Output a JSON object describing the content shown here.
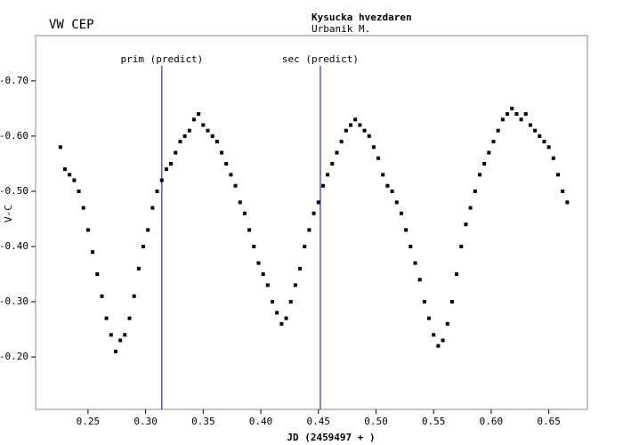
{
  "chart_data": {
    "type": "scatter",
    "title": "VW CEP",
    "header": "Kysucka hvezdaren",
    "observer": "Urbanik M.",
    "xlabel": "JD (2459497 + )",
    "ylabel": "V-C",
    "xlim": [
      0.2045,
      0.6835
    ],
    "ylim": [
      -0.105,
      -0.782
    ],
    "xticks": [
      0.25,
      {
        "value": 0.3,
        "label": "0.30"
      },
      0.35,
      {
        "value": 0.4,
        "label": "0.40"
      },
      0.45,
      {
        "value": 0.5,
        "label": "0.50"
      },
      0.55,
      {
        "value": 0.6,
        "label": "0.60"
      },
      0.65
    ],
    "yticks": [
      {
        "value": -0.7,
        "label": "-0.70"
      },
      {
        "value": -0.6,
        "label": "-0.60"
      },
      {
        "value": -0.5,
        "label": "-0.50"
      },
      {
        "value": -0.4,
        "label": "-0.40"
      },
      {
        "value": -0.3,
        "label": "-0.30"
      },
      {
        "value": -0.2,
        "label": "-0.20"
      }
    ],
    "vlines": [
      {
        "x": 0.3141,
        "label": "prim (predict)"
      },
      {
        "x": 0.4517,
        "label": "sec (predict)"
      }
    ],
    "vline_color": "#0000cc",
    "title_color": "#0000cc",
    "color": "#000000",
    "x": [
      0.226,
      0.23,
      0.234,
      0.238,
      0.242,
      0.246,
      0.25,
      0.254,
      0.258,
      0.262,
      0.266,
      0.27,
      0.274,
      0.278,
      0.282,
      0.286,
      0.29,
      0.294,
      0.298,
      0.302,
      0.306,
      0.31,
      0.314,
      0.318,
      0.322,
      0.326,
      0.33,
      0.334,
      0.338,
      0.342,
      0.346,
      0.35,
      0.354,
      0.358,
      0.362,
      0.366,
      0.37,
      0.374,
      0.378,
      0.382,
      0.386,
      0.39,
      0.394,
      0.398,
      0.402,
      0.406,
      0.41,
      0.414,
      0.418,
      0.422,
      0.426,
      0.43,
      0.434,
      0.438,
      0.442,
      0.446,
      0.45,
      0.454,
      0.458,
      0.462,
      0.466,
      0.47,
      0.474,
      0.478,
      0.482,
      0.486,
      0.49,
      0.494,
      0.498,
      0.502,
      0.506,
      0.51,
      0.514,
      0.518,
      0.522,
      0.526,
      0.53,
      0.534,
      0.538,
      0.542,
      0.546,
      0.55,
      0.554,
      0.558,
      0.562,
      0.566,
      0.57,
      0.574,
      0.578,
      0.582,
      0.586,
      0.59,
      0.594,
      0.598,
      0.602,
      0.606,
      0.61,
      0.614,
      0.618,
      0.622,
      0.626,
      0.63,
      0.634,
      0.638,
      0.642,
      0.646,
      0.65,
      0.654,
      0.658,
      0.662,
      0.666
    ],
    "values": [
      -0.58,
      -0.54,
      -0.53,
      -0.52,
      -0.5,
      -0.47,
      -0.43,
      -0.39,
      -0.35,
      -0.31,
      -0.27,
      -0.24,
      -0.21,
      -0.23,
      -0.24,
      -0.27,
      -0.31,
      -0.36,
      -0.4,
      -0.43,
      -0.47,
      -0.5,
      -0.52,
      -0.54,
      -0.55,
      -0.57,
      -0.59,
      -0.6,
      -0.61,
      -0.63,
      -0.64,
      -0.62,
      -0.61,
      -0.6,
      -0.59,
      -0.57,
      -0.55,
      -0.53,
      -0.51,
      -0.48,
      -0.46,
      -0.43,
      -0.4,
      -0.37,
      -0.35,
      -0.33,
      -0.3,
      -0.28,
      -0.26,
      -0.27,
      -0.3,
      -0.33,
      -0.36,
      -0.4,
      -0.43,
      -0.46,
      -0.48,
      -0.51,
      -0.53,
      -0.55,
      -0.57,
      -0.59,
      -0.61,
      -0.62,
      -0.63,
      -0.62,
      -0.61,
      -0.6,
      -0.58,
      -0.56,
      -0.53,
      -0.51,
      -0.5,
      -0.48,
      -0.46,
      -0.43,
      -0.4,
      -0.37,
      -0.34,
      -0.3,
      -0.27,
      -0.24,
      -0.22,
      -0.23,
      -0.26,
      -0.3,
      -0.35,
      -0.4,
      -0.44,
      -0.47,
      -0.5,
      -0.53,
      -0.55,
      -0.57,
      -0.59,
      -0.61,
      -0.63,
      -0.64,
      -0.65,
      -0.64,
      -0.63,
      -0.64,
      -0.62,
      -0.61,
      -0.6,
      -0.59,
      -0.58,
      -0.56,
      -0.53,
      -0.5,
      -0.48
    ]
  }
}
